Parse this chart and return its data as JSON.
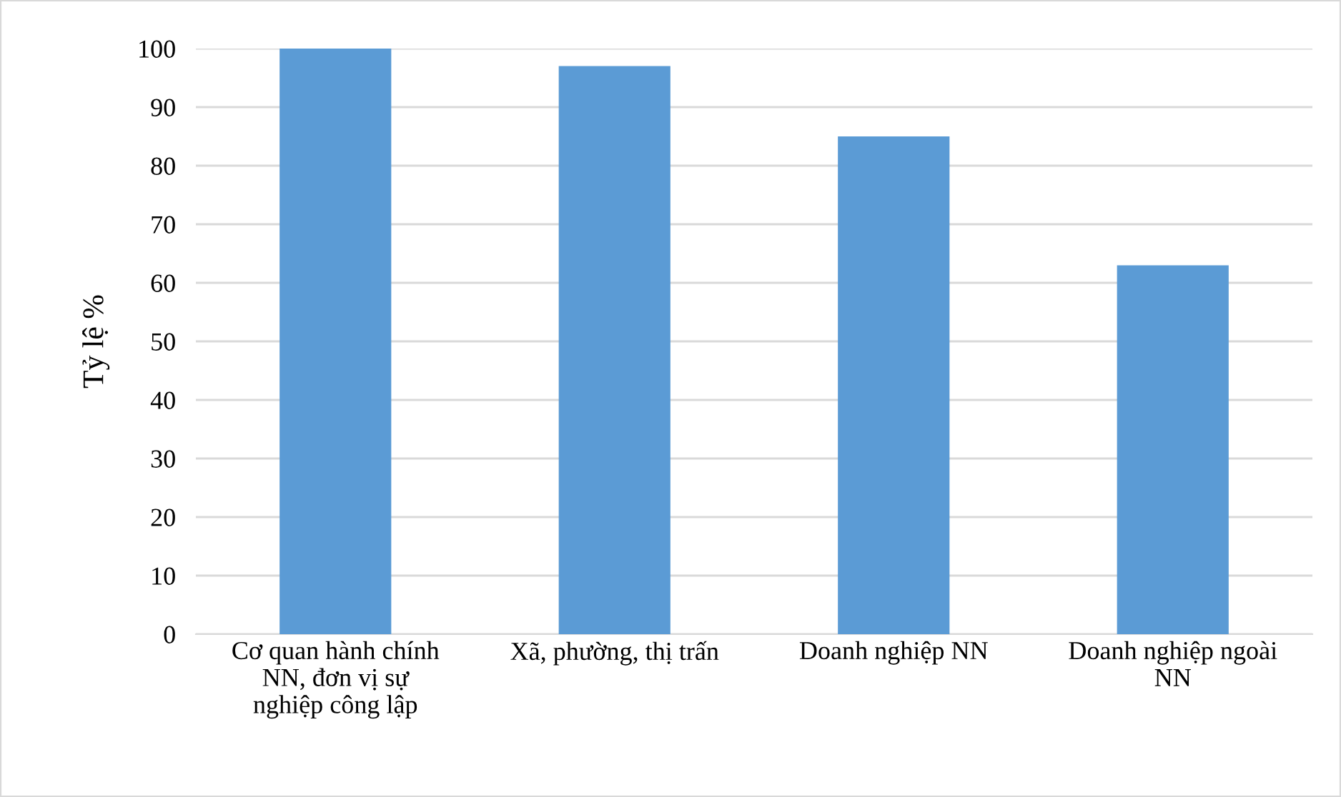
{
  "chart_data": {
    "type": "bar",
    "ylabel": "Tỷ lệ %",
    "categories": [
      "Cơ quan hành chính NN, đơn vị sự nghiệp công lập",
      "Xã, phường, thị trấn",
      "Doanh nghiệp NN",
      "Doanh nghiệp ngoài NN"
    ],
    "values": [
      100,
      97,
      85,
      63
    ],
    "color": "#5b9bd5",
    "ylim": [
      0,
      100
    ],
    "yticks": [
      0,
      10,
      20,
      30,
      40,
      50,
      60,
      70,
      80,
      90,
      100
    ],
    "grid": "y",
    "legend": false
  }
}
